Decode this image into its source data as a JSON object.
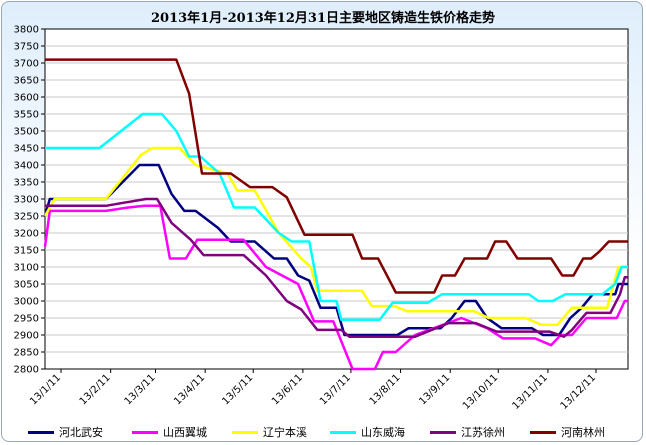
{
  "chart_data": {
    "type": "line",
    "title": "2013年1月-2013年12月31日主要地区铸造生铁价格走势",
    "xlabel": "",
    "ylabel": "",
    "ylim": [
      2800,
      3800
    ],
    "y_step": 50,
    "x_range": [
      "2013-01-01",
      "2013-12-31"
    ],
    "x_ticks": [
      "13/1/11",
      "13/2/11",
      "13/3/11",
      "13/4/11",
      "13/5/11",
      "13/6/11",
      "13/7/11",
      "13/8/11",
      "13/9/11",
      "13/10/11",
      "13/11/11",
      "13/12/11"
    ],
    "x_tick_dates": [
      "2013-01-11",
      "2013-02-11",
      "2013-03-11",
      "2013-04-11",
      "2013-05-11",
      "2013-06-11",
      "2013-07-11",
      "2013-08-11",
      "2013-09-11",
      "2013-10-11",
      "2013-11-11",
      "2013-12-11"
    ],
    "grid": true,
    "legend_position": "bottom",
    "series": [
      {
        "name": "河北武安",
        "color": "#000080",
        "points": [
          [
            "2013-01-01",
            3250
          ],
          [
            "2013-01-04",
            3300
          ],
          [
            "2013-02-08",
            3300
          ],
          [
            "2013-03-01",
            3400
          ],
          [
            "2013-03-13",
            3400
          ],
          [
            "2013-03-21",
            3315
          ],
          [
            "2013-03-29",
            3265
          ],
          [
            "2013-04-05",
            3265
          ],
          [
            "2013-04-19",
            3215
          ],
          [
            "2013-04-27",
            3175
          ],
          [
            "2013-05-12",
            3175
          ],
          [
            "2013-05-24",
            3125
          ],
          [
            "2013-06-01",
            3125
          ],
          [
            "2013-06-08",
            3075
          ],
          [
            "2013-06-15",
            3060
          ],
          [
            "2013-06-22",
            2980
          ],
          [
            "2013-07-02",
            2980
          ],
          [
            "2013-07-07",
            2900
          ],
          [
            "2013-08-09",
            2900
          ],
          [
            "2013-08-16",
            2920
          ],
          [
            "2013-09-05",
            2920
          ],
          [
            "2013-09-12",
            2950
          ],
          [
            "2013-09-20",
            3000
          ],
          [
            "2013-09-27",
            3000
          ],
          [
            "2013-10-04",
            2950
          ],
          [
            "2013-10-13",
            2920
          ],
          [
            "2013-11-01",
            2920
          ],
          [
            "2013-11-08",
            2900
          ],
          [
            "2013-11-18",
            2900
          ],
          [
            "2013-11-25",
            2950
          ],
          [
            "2013-12-02",
            2980
          ],
          [
            "2013-12-09",
            3020
          ],
          [
            "2013-12-23",
            3020
          ],
          [
            "2013-12-25",
            3050
          ],
          [
            "2013-12-31",
            3050
          ]
        ]
      },
      {
        "name": "山西翼城",
        "color": "#ff00ff",
        "points": [
          [
            "2013-01-01",
            3160
          ],
          [
            "2013-01-04",
            3265
          ],
          [
            "2013-02-08",
            3265
          ],
          [
            "2013-02-22",
            3275
          ],
          [
            "2013-03-04",
            3280
          ],
          [
            "2013-03-14",
            3280
          ],
          [
            "2013-03-20",
            3125
          ],
          [
            "2013-03-30",
            3125
          ],
          [
            "2013-04-06",
            3180
          ],
          [
            "2013-05-05",
            3180
          ],
          [
            "2013-05-19",
            3100
          ],
          [
            "2013-06-08",
            3050
          ],
          [
            "2013-06-18",
            2940
          ],
          [
            "2013-06-30",
            2940
          ],
          [
            "2013-07-12",
            2800
          ],
          [
            "2013-07-26",
            2800
          ],
          [
            "2013-07-31",
            2850
          ],
          [
            "2013-08-08",
            2850
          ],
          [
            "2013-08-20",
            2900
          ],
          [
            "2013-09-18",
            2950
          ],
          [
            "2013-10-04",
            2920
          ],
          [
            "2013-10-14",
            2890
          ],
          [
            "2013-11-03",
            2890
          ],
          [
            "2013-11-13",
            2870
          ],
          [
            "2013-11-19",
            2900
          ],
          [
            "2013-11-26",
            2900
          ],
          [
            "2013-12-05",
            2950
          ],
          [
            "2013-12-24",
            2950
          ],
          [
            "2013-12-29",
            3000
          ],
          [
            "2013-12-31",
            3000
          ]
        ]
      },
      {
        "name": "辽宁本溪",
        "color": "#ffff00",
        "points": [
          [
            "2013-01-01",
            3250
          ],
          [
            "2013-01-07",
            3300
          ],
          [
            "2013-02-08",
            3300
          ],
          [
            "2013-03-02",
            3430
          ],
          [
            "2013-03-09",
            3450
          ],
          [
            "2013-03-26",
            3450
          ],
          [
            "2013-04-05",
            3400
          ],
          [
            "2013-04-25",
            3375
          ],
          [
            "2013-05-01",
            3325
          ],
          [
            "2013-05-12",
            3325
          ],
          [
            "2013-05-27",
            3200
          ],
          [
            "2013-06-10",
            3125
          ],
          [
            "2013-06-16",
            3100
          ],
          [
            "2013-06-20",
            3030
          ],
          [
            "2013-07-18",
            3030
          ],
          [
            "2013-07-24",
            2985
          ],
          [
            "2013-08-07",
            2985
          ],
          [
            "2013-08-15",
            2970
          ],
          [
            "2013-09-05",
            2970
          ],
          [
            "2013-09-26",
            2970
          ],
          [
            "2013-10-05",
            2950
          ],
          [
            "2013-10-28",
            2950
          ],
          [
            "2013-11-07",
            2930
          ],
          [
            "2013-11-17",
            2930
          ],
          [
            "2013-11-26",
            2980
          ],
          [
            "2013-12-18",
            2980
          ],
          [
            "2013-12-25",
            3100
          ],
          [
            "2013-12-31",
            3100
          ]
        ]
      },
      {
        "name": "山东威海",
        "color": "#00ffff",
        "points": [
          [
            "2013-01-01",
            3450
          ],
          [
            "2013-02-04",
            3450
          ],
          [
            "2013-03-03",
            3550
          ],
          [
            "2013-03-15",
            3550
          ],
          [
            "2013-03-24",
            3500
          ],
          [
            "2013-04-01",
            3425
          ],
          [
            "2013-04-08",
            3425
          ],
          [
            "2013-04-20",
            3375
          ],
          [
            "2013-04-29",
            3275
          ],
          [
            "2013-05-12",
            3275
          ],
          [
            "2013-05-27",
            3200
          ],
          [
            "2013-06-04",
            3175
          ],
          [
            "2013-06-15",
            3175
          ],
          [
            "2013-06-22",
            3000
          ],
          [
            "2013-07-02",
            3000
          ],
          [
            "2013-07-05",
            2945
          ],
          [
            "2013-07-29",
            2945
          ],
          [
            "2013-08-06",
            2995
          ],
          [
            "2013-08-28",
            2995
          ],
          [
            "2013-09-06",
            3020
          ],
          [
            "2013-10-30",
            3020
          ],
          [
            "2013-11-05",
            3000
          ],
          [
            "2013-11-14",
            3000
          ],
          [
            "2013-11-22",
            3020
          ],
          [
            "2013-12-15",
            3020
          ],
          [
            "2013-12-23",
            3050
          ],
          [
            "2013-12-27",
            3100
          ],
          [
            "2013-12-31",
            3100
          ]
        ]
      },
      {
        "name": "江苏徐州",
        "color": "#800080",
        "points": [
          [
            "2013-01-01",
            3280
          ],
          [
            "2013-02-08",
            3280
          ],
          [
            "2013-03-05",
            3300
          ],
          [
            "2013-03-12",
            3300
          ],
          [
            "2013-03-21",
            3230
          ],
          [
            "2013-04-02",
            3180
          ],
          [
            "2013-04-10",
            3135
          ],
          [
            "2013-05-05",
            3135
          ],
          [
            "2013-05-19",
            3075
          ],
          [
            "2013-06-01",
            3000
          ],
          [
            "2013-06-10",
            2975
          ],
          [
            "2013-06-20",
            2915
          ],
          [
            "2013-07-05",
            2915
          ],
          [
            "2013-07-10",
            2895
          ],
          [
            "2013-08-20",
            2895
          ],
          [
            "2013-09-10",
            2935
          ],
          [
            "2013-09-27",
            2935
          ],
          [
            "2013-10-10",
            2910
          ],
          [
            "2013-11-12",
            2910
          ],
          [
            "2013-11-21",
            2895
          ],
          [
            "2013-11-26",
            2915
          ],
          [
            "2013-12-05",
            2965
          ],
          [
            "2013-12-20",
            2965
          ],
          [
            "2013-12-26",
            3020
          ],
          [
            "2013-12-29",
            3070
          ],
          [
            "2013-12-31",
            3070
          ]
        ]
      },
      {
        "name": "河南林州",
        "color": "#800000",
        "points": [
          [
            "2013-01-01",
            3710
          ],
          [
            "2013-03-24",
            3710
          ],
          [
            "2013-04-01",
            3610
          ],
          [
            "2013-04-09",
            3375
          ],
          [
            "2013-04-27",
            3375
          ],
          [
            "2013-05-09",
            3335
          ],
          [
            "2013-05-23",
            3335
          ],
          [
            "2013-06-01",
            3305
          ],
          [
            "2013-06-12",
            3195
          ],
          [
            "2013-07-12",
            3195
          ],
          [
            "2013-07-18",
            3125
          ],
          [
            "2013-07-28",
            3125
          ],
          [
            "2013-08-08",
            3025
          ],
          [
            "2013-09-01",
            3025
          ],
          [
            "2013-09-06",
            3075
          ],
          [
            "2013-09-14",
            3075
          ],
          [
            "2013-09-20",
            3125
          ],
          [
            "2013-10-04",
            3125
          ],
          [
            "2013-10-09",
            3175
          ],
          [
            "2013-10-16",
            3175
          ],
          [
            "2013-10-23",
            3125
          ],
          [
            "2013-11-13",
            3125
          ],
          [
            "2013-11-20",
            3075
          ],
          [
            "2013-11-27",
            3075
          ],
          [
            "2013-12-03",
            3125
          ],
          [
            "2013-12-08",
            3125
          ],
          [
            "2013-12-13",
            3145
          ],
          [
            "2013-12-19",
            3175
          ],
          [
            "2013-12-27",
            3175
          ],
          [
            "2013-12-31",
            3175
          ]
        ]
      }
    ]
  }
}
